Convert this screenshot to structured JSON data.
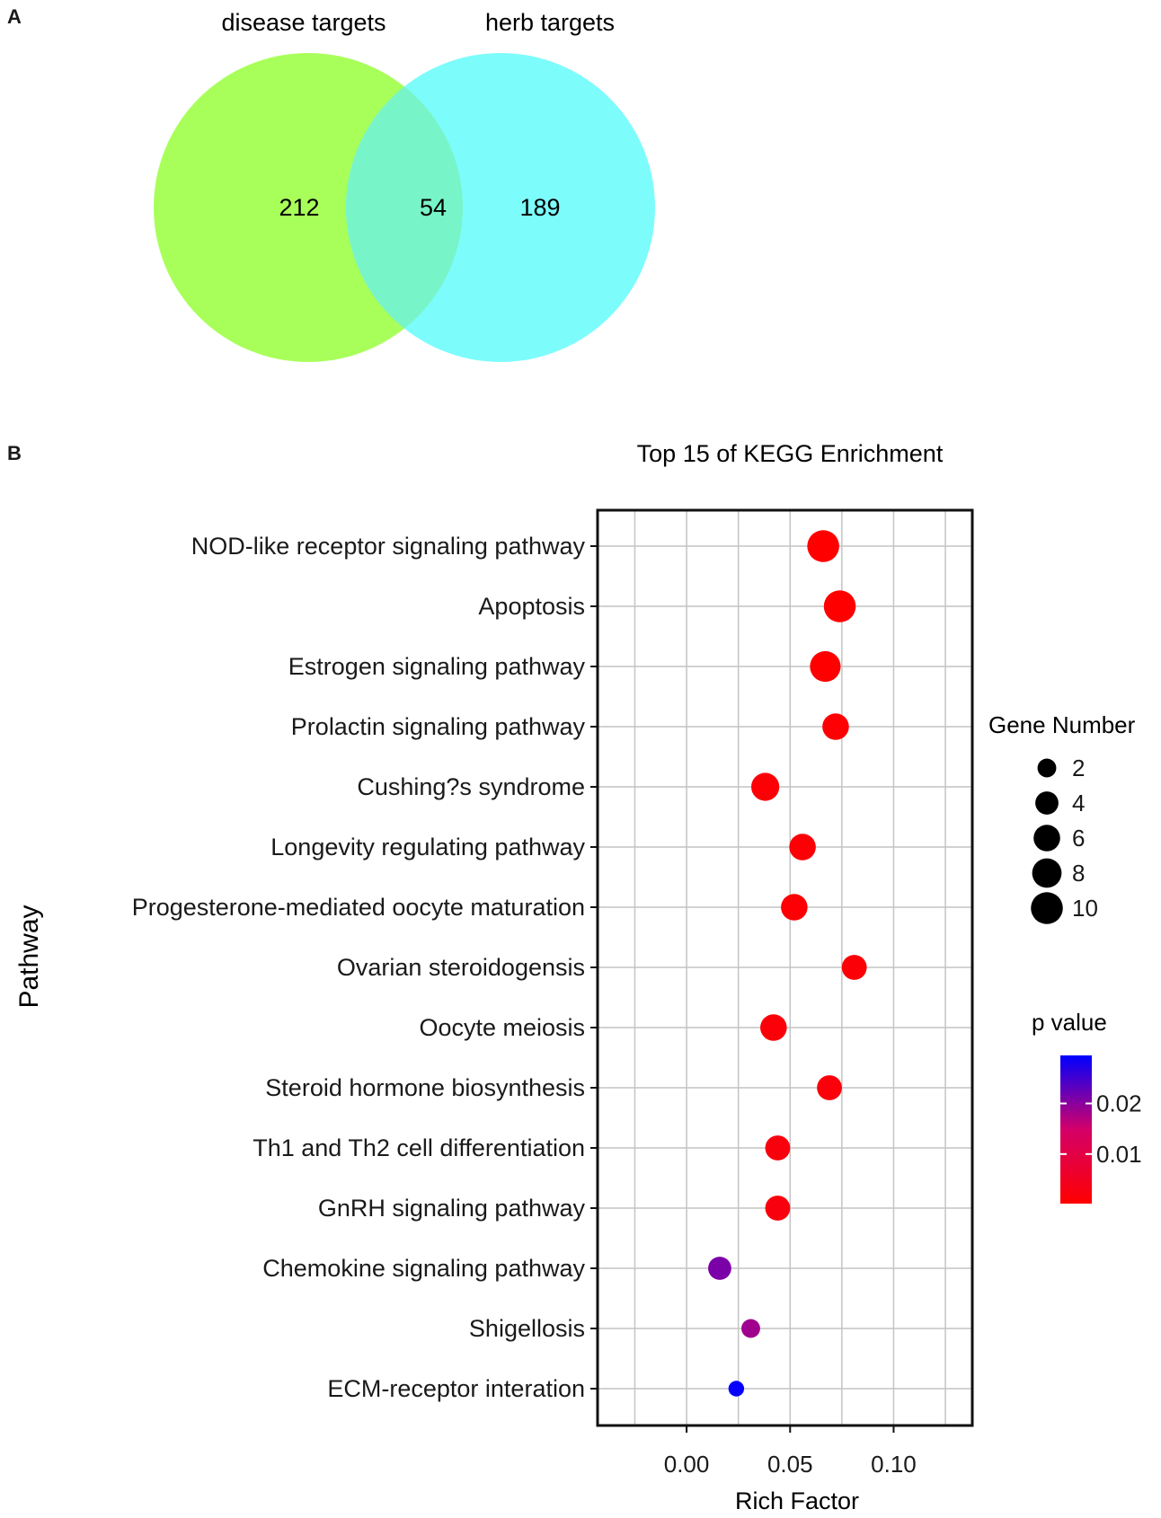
{
  "panels": {
    "a": "A",
    "b": "B"
  },
  "chart_data": [
    {
      "type": "venn",
      "sets": [
        {
          "name": "disease targets",
          "only": 212,
          "color": "#a8ff5a"
        },
        {
          "name": "herb targets",
          "only": 189,
          "color": "#7dfcfc"
        }
      ],
      "overlap": 54,
      "overlap_color": "#78f5c8"
    },
    {
      "type": "scatter",
      "title": "Top 15 of KEGG Enrichment",
      "xlabel": "Rich Factor",
      "ylabel": "Pathway",
      "xlim": [
        -0.043,
        0.138
      ],
      "xticks": [
        0.0,
        0.05,
        0.1
      ],
      "xtick_labels": [
        "0.00",
        "0.05",
        "0.10"
      ],
      "categories": [
        "NOD-like receptor signaling pathway",
        "Apoptosis",
        "Estrogen signaling pathway",
        "Prolactin signaling pathway",
        "Cushing?s syndrome",
        "Longevity regulating pathway",
        "Progesterone-mediated oocyte maturation",
        "Ovarian steroidogensis",
        "Oocyte meiosis",
        "Steroid hormone biosynthesis",
        "Th1 and Th2 cell differentiation",
        "GnRH signaling pathway",
        "Chemokine signaling pathway",
        "Shigellosis",
        "ECM-receptor interation"
      ],
      "rich_factor": [
        0.066,
        0.074,
        0.067,
        0.072,
        0.038,
        0.056,
        0.052,
        0.081,
        0.042,
        0.069,
        0.044,
        0.044,
        0.016,
        0.031,
        0.024
      ],
      "gene_number": [
        10,
        10,
        9,
        6,
        7,
        6,
        6,
        5,
        6,
        5,
        5,
        5,
        4,
        2,
        1
      ],
      "p_value": [
        0.0003,
        0.0002,
        0.0003,
        0.0006,
        0.0009,
        0.0011,
        0.0011,
        0.0013,
        0.0014,
        0.0017,
        0.0021,
        0.0022,
        0.021,
        0.0185,
        0.029
      ],
      "size_legend": {
        "title": "Gene Number",
        "values": [
          2,
          4,
          6,
          8,
          10
        ]
      },
      "color_legend": {
        "title": "p value",
        "ticks": [
          0.02,
          0.01
        ],
        "tick_labels": [
          "0.02",
          "0.01"
        ],
        "range": [
          0.0002,
          0.0295
        ],
        "low_color": "#ff0000",
        "high_color": "#0000ff"
      }
    }
  ]
}
